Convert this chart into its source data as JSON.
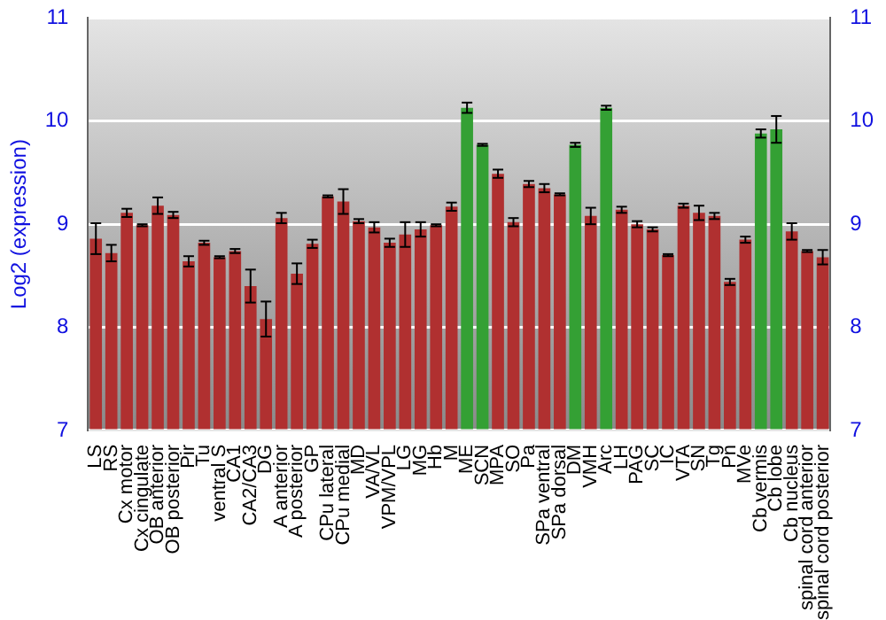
{
  "chart_data": {
    "type": "bar",
    "ylabel": "Log2 (expression)",
    "categories": [
      "LS",
      "RS",
      "Cx motor",
      "Cx cingulate",
      "OB anterior",
      "OB posterior",
      "Pir",
      "Tu",
      "ventral S",
      "CA1",
      "CA2/CA3",
      "DG",
      "A anterior",
      "A posterior",
      "GP",
      "CPu lateral",
      "CPu medial",
      "MD",
      "VA/VL",
      "VPM/VPL",
      "LG",
      "MG",
      "Hb",
      "M",
      "ME",
      "SCN",
      "MPA",
      "SO",
      "Pa",
      "SPa ventral",
      "SPa dorsal",
      "DM",
      "VMH",
      "Arc",
      "LH",
      "PAG",
      "SC",
      "IC",
      "VTA",
      "SN",
      "Tg",
      "Pn",
      "MVe",
      "Cb vermis",
      "Cb lobe",
      "Cb nucleus",
      "spinal cord anterior",
      "spinal cord posterior"
    ],
    "values": [
      8.86,
      8.72,
      9.11,
      8.99,
      9.18,
      9.09,
      8.64,
      8.82,
      8.68,
      8.74,
      8.4,
      8.08,
      9.06,
      8.52,
      8.81,
      9.27,
      9.22,
      9.03,
      8.97,
      8.82,
      8.9,
      8.95,
      8.99,
      9.17,
      10.13,
      9.77,
      9.49,
      9.02,
      9.39,
      9.35,
      9.29,
      9.77,
      9.08,
      10.13,
      9.14,
      9.0,
      8.95,
      8.7,
      9.18,
      9.11,
      9.08,
      8.44,
      8.85,
      9.88,
      9.92,
      8.93,
      8.74,
      8.68
    ],
    "errors": [
      0.15,
      0.08,
      0.04,
      0.01,
      0.08,
      0.03,
      0.05,
      0.02,
      0.01,
      0.02,
      0.16,
      0.17,
      0.05,
      0.1,
      0.04,
      0.01,
      0.12,
      0.02,
      0.05,
      0.04,
      0.12,
      0.07,
      0.01,
      0.04,
      0.05,
      0.01,
      0.04,
      0.04,
      0.03,
      0.04,
      0.01,
      0.02,
      0.08,
      0.02,
      0.03,
      0.03,
      0.02,
      0.01,
      0.02,
      0.07,
      0.03,
      0.03,
      0.03,
      0.04,
      0.13,
      0.08,
      0.01,
      0.07
    ],
    "colors": [
      "#b03030",
      "#b03030",
      "#b03030",
      "#b03030",
      "#b03030",
      "#b03030",
      "#b03030",
      "#b03030",
      "#b03030",
      "#b03030",
      "#b03030",
      "#b03030",
      "#b03030",
      "#b03030",
      "#b03030",
      "#b03030",
      "#b03030",
      "#b03030",
      "#b03030",
      "#b03030",
      "#b03030",
      "#b03030",
      "#b03030",
      "#b03030",
      "#34a034",
      "#34a034",
      "#b03030",
      "#b03030",
      "#b03030",
      "#b03030",
      "#b03030",
      "#34a034",
      "#b03030",
      "#34a034",
      "#b03030",
      "#b03030",
      "#b03030",
      "#b03030",
      "#b03030",
      "#b03030",
      "#b03030",
      "#b03030",
      "#b03030",
      "#34a034",
      "#34a034",
      "#b03030",
      "#b03030",
      "#b03030"
    ],
    "ylim": [
      7,
      11
    ],
    "yticks": [
      7,
      8,
      9,
      10,
      11
    ],
    "y2lim": [
      7,
      11
    ],
    "y2ticks": [
      7,
      8,
      9,
      10,
      11
    ],
    "grid": "y",
    "legend": false
  }
}
